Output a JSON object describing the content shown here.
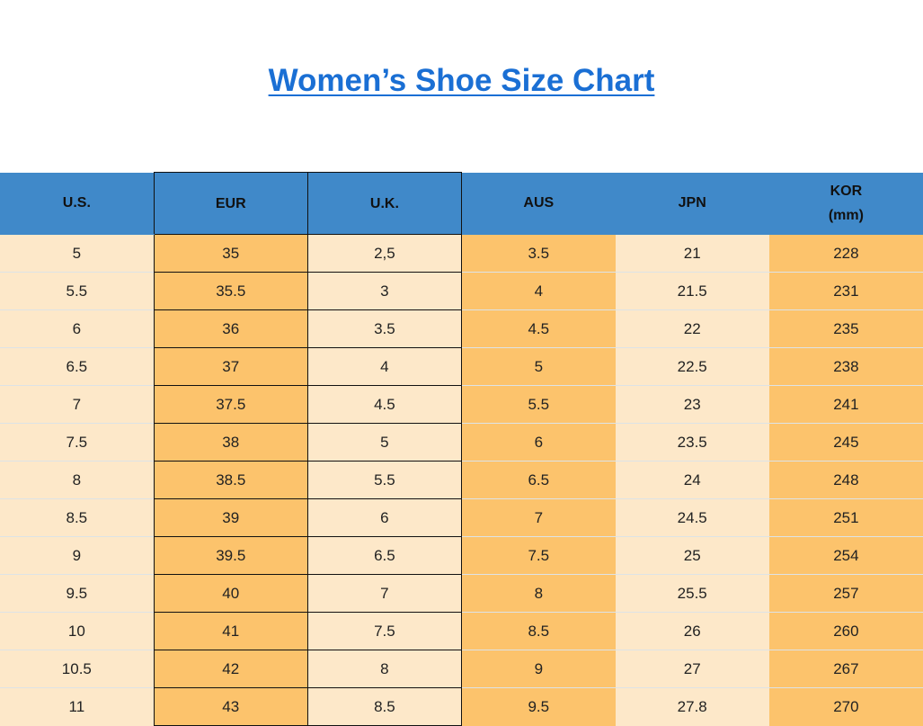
{
  "title": "Women’s Shoe Size Chart",
  "colors": {
    "header": "#4089c9",
    "light_cell": "#fde8c9",
    "dark_cell": "#fcc36c",
    "title": "#1a6fd4"
  },
  "headers": [
    "U.S.",
    "EUR",
    "U.K.",
    "AUS",
    "JPN",
    "KOR\n(mm)"
  ],
  "rows": [
    [
      "5",
      "35",
      "2,5",
      "3.5",
      "21",
      "228"
    ],
    [
      "5.5",
      "35.5",
      "3",
      "4",
      "21.5",
      "231"
    ],
    [
      "6",
      "36",
      "3.5",
      "4.5",
      "22",
      "235"
    ],
    [
      "6.5",
      "37",
      "4",
      "5",
      "22.5",
      "238"
    ],
    [
      "7",
      "37.5",
      "4.5",
      "5.5",
      "23",
      "241"
    ],
    [
      "7.5",
      "38",
      "5",
      "6",
      "23.5",
      "245"
    ],
    [
      "8",
      "38.5",
      "5.5",
      "6.5",
      "24",
      "248"
    ],
    [
      "8.5",
      "39",
      "6",
      "7",
      "24.5",
      "251"
    ],
    [
      "9",
      "39.5",
      "6.5",
      "7.5",
      "25",
      "254"
    ],
    [
      "9.5",
      "40",
      "7",
      "8",
      "25.5",
      "257"
    ],
    [
      "10",
      "41",
      "7.5",
      "8.5",
      "26",
      "260"
    ],
    [
      "10.5",
      "42",
      "8",
      "9",
      "27",
      "267"
    ],
    [
      "11",
      "43",
      "8.5",
      "9.5",
      "27.8",
      "270"
    ]
  ]
}
